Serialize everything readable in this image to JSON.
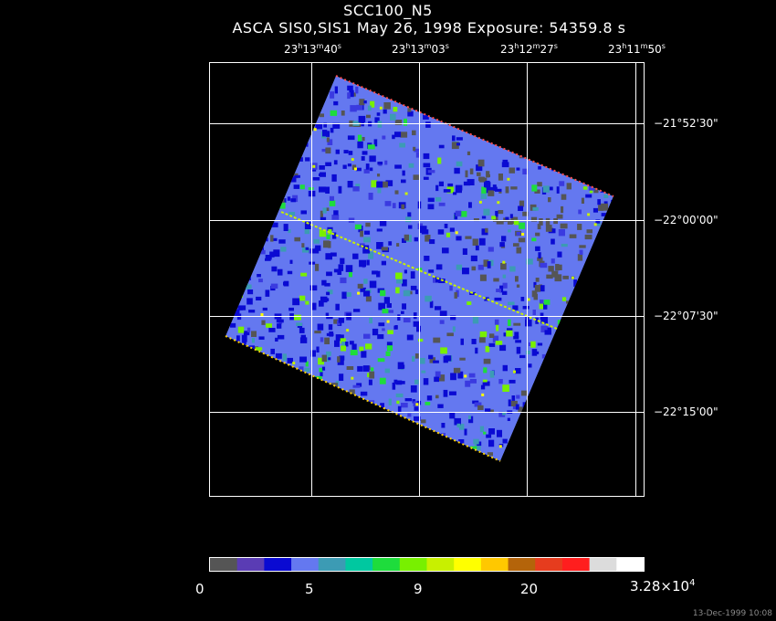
{
  "title": "SCC100_N5",
  "subtitle": "ASCA SIS0,SIS1 May 26, 1998 Exposure: 54359.8 s",
  "ra_labels": [
    {
      "h": "23",
      "m": "13",
      "s": "40"
    },
    {
      "h": "23",
      "m": "13",
      "s": "03"
    },
    {
      "h": "23",
      "m": "12",
      "s": "27"
    },
    {
      "h": "23",
      "m": "11",
      "s": "50"
    }
  ],
  "dec_labels": [
    "−21°52'30\"",
    "−22°00'00\"",
    "−22°07'30\"",
    "−22°15'00\""
  ],
  "colorbar": {
    "labels": [
      "0",
      "5",
      "9",
      "20"
    ],
    "max_mantissa": "3.28×10",
    "max_exp": "4",
    "colors": [
      "#555555",
      "#5a3cb4",
      "#0a0ad2",
      "#6478f0",
      "#3c9bb4",
      "#00c8a0",
      "#1edc3c",
      "#78f000",
      "#c8f000",
      "#ffff00",
      "#ffc800",
      "#b4640a",
      "#e63c1e",
      "#ff1e1e",
      "#dcdcdc",
      "#ffffff"
    ]
  },
  "footer": "13-Dec-1999 10:08"
}
